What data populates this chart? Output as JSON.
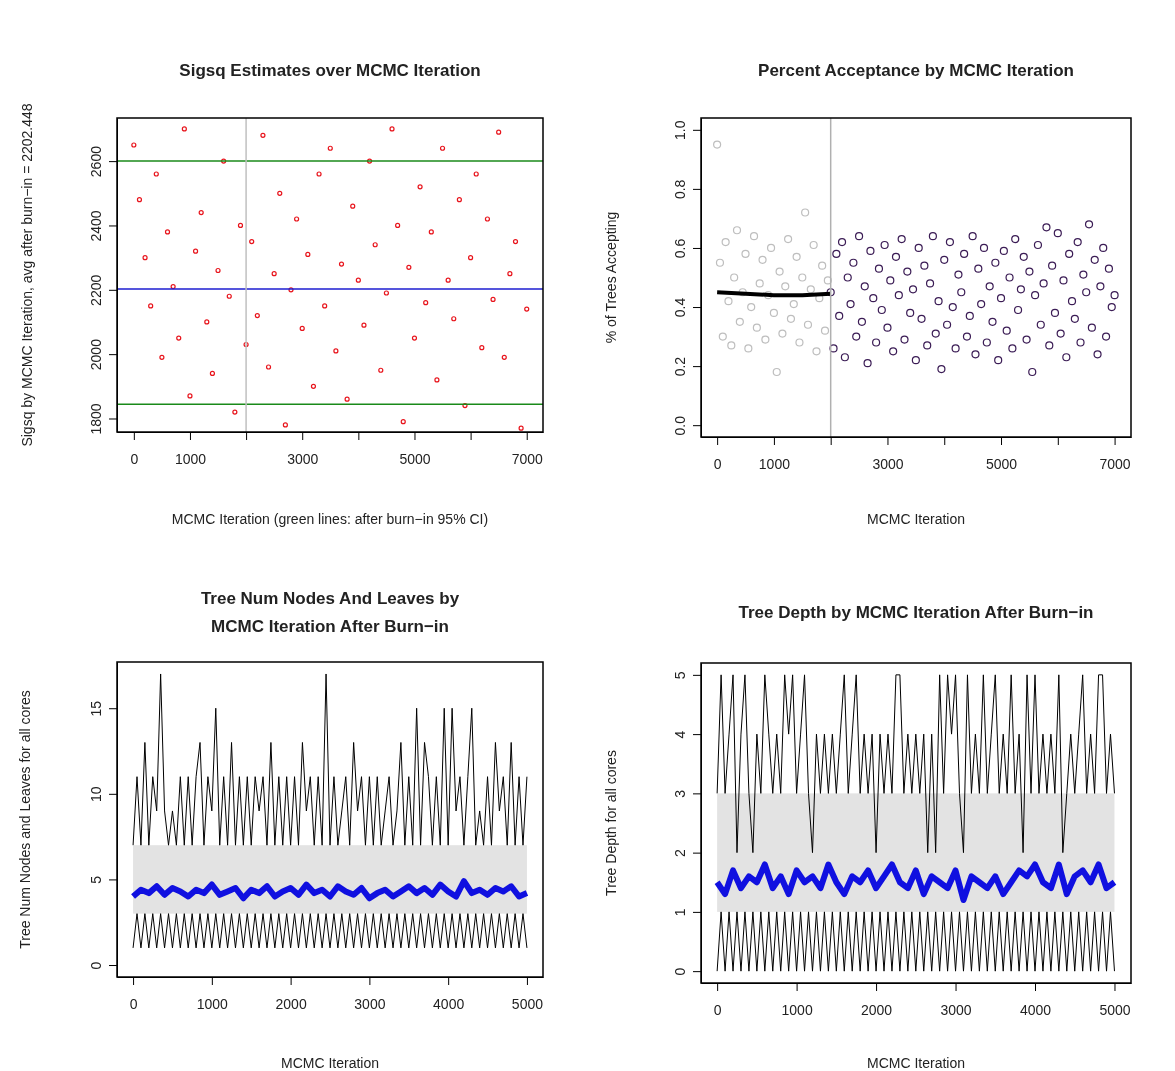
{
  "chart_data": [
    {
      "type": "scatter",
      "title": "Sigsq Estimates over MCMC Iteration",
      "xlabel": "MCMC Iteration (green lines: after burn−in 95% CI)",
      "ylabel": "Sigsq by MCMC Iteration, avg after burn−in = 2202.448",
      "marker": "circle",
      "xlim": [
        -300,
        7290
      ],
      "ylim": [
        1758,
        2734
      ],
      "xticks": [
        0,
        1000,
        {
          "value": 2000,
          "label": null
        },
        3000,
        {
          "value": 4000,
          "label": null
        },
        5000,
        {
          "value": 6000,
          "label": null
        },
        7000
      ],
      "yticks": [
        1800,
        2000,
        2200,
        2400,
        2600
      ],
      "x": [
        0,
        100,
        200,
        300,
        400,
        500,
        600,
        700,
        800,
        900,
        1000,
        1100,
        1200,
        1300,
        1400,
        1500,
        1600,
        1700,
        1800,
        1900,
        2000,
        2100,
        2200,
        2300,
        2400,
        2500,
        2600,
        2700,
        2800,
        2900,
        3000,
        3100,
        3200,
        3300,
        3400,
        3500,
        3600,
        3700,
        3800,
        3900,
        4000,
        4100,
        4200,
        4300,
        4400,
        4500,
        4600,
        4700,
        4800,
        4900,
        5000,
        5100,
        5200,
        5300,
        5400,
        5500,
        5600,
        5700,
        5800,
        5900,
        6000,
        6100,
        6200,
        6300,
        6400,
        6500,
        6600,
        6700,
        6800,
        6900,
        7000
      ],
      "series": [
        {
          "color": "#e8141c",
          "values": [
            2650,
            2480,
            2300,
            2150,
            2560,
            1990,
            2380,
            2210,
            2050,
            2700,
            1870,
            2320,
            2440,
            2100,
            1940,
            2260,
            2600,
            2180,
            1820,
            2400,
            2030,
            2350,
            2120,
            2680,
            1960,
            2250,
            2500,
            1780,
            2200,
            2420,
            2080,
            2310,
            1900,
            2560,
            2150,
            2640,
            2010,
            2280,
            1860,
            2460,
            2230,
            2090,
            2600,
            2340,
            1950,
            2190,
            2700,
            2400,
            1790,
            2270,
            2050,
            2520,
            2160,
            2380,
            1920,
            2640,
            2230,
            2110,
            2480,
            1840,
            2300,
            2560,
            2020,
            2420,
            2170,
            2690,
            1990,
            2250,
            2350,
            1770,
            2140
          ]
        }
      ],
      "ref_lines": [
        {
          "axis": "y",
          "value": 2600,
          "color": "#1a8a1a"
        },
        {
          "axis": "y",
          "value": 1844,
          "color": "#1a8a1a"
        },
        {
          "axis": "y",
          "value": 2202.448,
          "color": "#1c1cd0"
        },
        {
          "axis": "x",
          "value": 2000,
          "color": "#c0c0c0"
        }
      ]
    },
    {
      "type": "scatter",
      "title": "Percent Acceptance by MCMC Iteration",
      "xlabel": "MCMC Iteration",
      "ylabel": "% of Trees Accepting",
      "marker": "circle",
      "xlim": [
        -284,
        7289
      ],
      "ylim": [
        -0.04,
        1.04
      ],
      "xticks": [
        0,
        1000,
        {
          "value": 2000,
          "label": null
        },
        3000,
        {
          "value": 4000,
          "label": null
        },
        5000,
        {
          "value": 6000,
          "label": null
        },
        7000
      ],
      "yticks": [
        {
          "value": 0,
          "label": "0.0"
        },
        {
          "value": 0.2,
          "label": "0.2"
        },
        {
          "value": 0.4,
          "label": "0.4"
        },
        {
          "value": 0.6,
          "label": "0.6"
        },
        {
          "value": 0.8,
          "label": "0.8"
        },
        {
          "value": 1,
          "label": "1.0"
        }
      ],
      "series": [
        {
          "color": "#bebebe",
          "x": [
            0,
            50,
            100,
            150,
            200,
            250,
            300,
            350,
            400,
            450,
            500,
            550,
            600,
            650,
            700,
            750,
            800,
            850,
            900,
            950,
            1000,
            1050,
            1100,
            1150,
            1200,
            1250,
            1300,
            1350,
            1400,
            1450,
            1500,
            1550,
            1600,
            1650,
            1700,
            1750,
            1800,
            1850,
            1900,
            1950
          ],
          "values": [
            0.95,
            0.55,
            0.3,
            0.62,
            0.42,
            0.27,
            0.5,
            0.66,
            0.35,
            0.45,
            0.58,
            0.26,
            0.4,
            0.64,
            0.33,
            0.48,
            0.56,
            0.29,
            0.44,
            0.6,
            0.38,
            0.18,
            0.52,
            0.31,
            0.47,
            0.63,
            0.36,
            0.41,
            0.57,
            0.28,
            0.5,
            0.72,
            0.34,
            0.46,
            0.61,
            0.25,
            0.43,
            0.54,
            0.32,
            0.49
          ]
        },
        {
          "color": "#3b1c55",
          "x": [
            2000,
            2050,
            2100,
            2150,
            2200,
            2250,
            2300,
            2350,
            2400,
            2450,
            2500,
            2550,
            2600,
            2650,
            2700,
            2750,
            2800,
            2850,
            2900,
            2950,
            3000,
            3050,
            3100,
            3150,
            3200,
            3250,
            3300,
            3350,
            3400,
            3450,
            3500,
            3550,
            3600,
            3650,
            3700,
            3750,
            3800,
            3850,
            3900,
            3950,
            4000,
            4050,
            4100,
            4150,
            4200,
            4250,
            4300,
            4350,
            4400,
            4450,
            4500,
            4550,
            4600,
            4650,
            4700,
            4750,
            4800,
            4850,
            4900,
            4950,
            5000,
            5050,
            5100,
            5150,
            5200,
            5250,
            5300,
            5350,
            5400,
            5450,
            5500,
            5550,
            5600,
            5650,
            5700,
            5750,
            5800,
            5850,
            5900,
            5950,
            6000,
            6050,
            6100,
            6150,
            6200,
            6250,
            6300,
            6350,
            6400,
            6450,
            6500,
            6550,
            6600,
            6650,
            6700,
            6750,
            6800,
            6850,
            6900,
            6950,
            7000
          ],
          "values": [
            0.45,
            0.26,
            0.58,
            0.37,
            0.62,
            0.23,
            0.5,
            0.41,
            0.55,
            0.3,
            0.64,
            0.35,
            0.47,
            0.21,
            0.59,
            0.43,
            0.28,
            0.53,
            0.39,
            0.61,
            0.33,
            0.49,
            0.25,
            0.57,
            0.44,
            0.63,
            0.29,
            0.52,
            0.38,
            0.46,
            0.22,
            0.6,
            0.36,
            0.54,
            0.27,
            0.48,
            0.64,
            0.31,
            0.42,
            0.19,
            0.56,
            0.34,
            0.62,
            0.4,
            0.26,
            0.51,
            0.45,
            0.58,
            0.3,
            0.37,
            0.64,
            0.24,
            0.53,
            0.41,
            0.6,
            0.28,
            0.47,
            0.35,
            0.55,
            0.22,
            0.43,
            0.59,
            0.32,
            0.5,
            0.26,
            0.63,
            0.39,
            0.46,
            0.57,
            0.29,
            0.52,
            0.18,
            0.44,
            0.61,
            0.34,
            0.48,
            0.67,
            0.27,
            0.54,
            0.38,
            0.65,
            0.31,
            0.49,
            0.23,
            0.58,
            0.42,
            0.36,
            0.62,
            0.28,
            0.51,
            0.45,
            0.68,
            0.33,
            0.56,
            0.24,
            0.47,
            0.6,
            0.3,
            0.53,
            0.4,
            0.44
          ]
        },
        {
          "type": "line",
          "marker": "none",
          "color": "#000000",
          "x": [
            0,
            500,
            1000,
            1500,
            2000
          ],
          "values": [
            0.45,
            0.445,
            0.44,
            0.44,
            0.445
          ]
        }
      ],
      "ref_lines": [
        {
          "axis": "x",
          "value": 2000,
          "color": "#b0b0b0"
        }
      ]
    },
    {
      "type": "line",
      "title": "Tree Num Nodes And Leaves by\nMCMC Iteration After Burn−in",
      "xlabel": "MCMC Iteration",
      "ylabel": "Tree Num Nodes and Leaves for all cores",
      "xlim": [
        -204,
        5204
      ],
      "ylim": [
        -0.7,
        17.7
      ],
      "xticks": [
        0,
        1000,
        2000,
        3000,
        4000,
        5000
      ],
      "yticks": [
        0,
        5,
        10,
        15
      ],
      "x": [
        0,
        50,
        100,
        150,
        200,
        250,
        300,
        350,
        400,
        450,
        500,
        550,
        600,
        650,
        700,
        750,
        800,
        850,
        900,
        950,
        1000,
        1050,
        1100,
        1150,
        1200,
        1250,
        1300,
        1350,
        1400,
        1450,
        1500,
        1550,
        1600,
        1650,
        1700,
        1750,
        1800,
        1850,
        1900,
        1950,
        2000,
        2050,
        2100,
        2150,
        2200,
        2250,
        2300,
        2350,
        2400,
        2450,
        2500,
        2550,
        2600,
        2650,
        2700,
        2750,
        2800,
        2850,
        2900,
        2950,
        3000,
        3050,
        3100,
        3150,
        3200,
        3250,
        3300,
        3350,
        3400,
        3450,
        3500,
        3550,
        3600,
        3650,
        3700,
        3750,
        3800,
        3850,
        3900,
        3950,
        4000,
        4050,
        4100,
        4150,
        4200,
        4250,
        4300,
        4350,
        4400,
        4450,
        4500,
        4550,
        4600,
        4650,
        4700,
        4750,
        4800,
        4850,
        4900,
        4950,
        5000
      ],
      "bands": [
        {
          "axis": "y",
          "from": 3,
          "to": 7,
          "color": "#e3e3e3"
        }
      ],
      "series": [
        {
          "color": "#000000",
          "values": [
            7,
            11,
            7,
            13,
            7,
            11,
            9,
            17,
            9,
            7,
            9,
            7,
            11,
            7,
            11,
            7,
            11,
            13,
            7,
            11,
            9,
            15,
            7,
            11,
            7,
            13,
            7,
            11,
            7,
            11,
            7,
            11,
            9,
            11,
            7,
            13,
            7,
            11,
            7,
            11,
            7,
            11,
            7,
            13,
            9,
            11,
            7,
            11,
            7,
            17,
            7,
            11,
            7,
            9,
            11,
            7,
            13,
            9,
            11,
            7,
            11,
            7,
            11,
            7,
            9,
            11,
            7,
            9,
            13,
            7,
            11,
            7,
            15,
            7,
            13,
            11,
            7,
            11,
            7,
            15,
            7,
            15,
            9,
            11,
            7,
            11,
            15,
            7,
            9,
            7,
            11,
            7,
            13,
            9,
            11,
            7,
            13,
            7,
            11,
            7,
            11
          ]
        },
        {
          "color": "#000000",
          "values": [
            1,
            3,
            1,
            3,
            1,
            3,
            1,
            3,
            1,
            3,
            1,
            3,
            1,
            3,
            1,
            3,
            1,
            3,
            1,
            3,
            1,
            3,
            1,
            3,
            1,
            3,
            1,
            3,
            1,
            3,
            1,
            3,
            1,
            3,
            1,
            3,
            1,
            3,
            1,
            3,
            1,
            3,
            1,
            3,
            1,
            3,
            1,
            3,
            1,
            3,
            1,
            3,
            1,
            3,
            1,
            3,
            1,
            3,
            1,
            3,
            1,
            3,
            1,
            3,
            1,
            3,
            1,
            3,
            1,
            3,
            1,
            3,
            1,
            3,
            1,
            3,
            1,
            3,
            1,
            3,
            1,
            3,
            1,
            3,
            1,
            3,
            1,
            3,
            1,
            3,
            1,
            3,
            1,
            3,
            1,
            3,
            1,
            3,
            1,
            3,
            1
          ]
        },
        {
          "color": "#1010e0",
          "x": [
            0,
            100,
            200,
            300,
            400,
            500,
            600,
            700,
            800,
            900,
            1000,
            1100,
            1200,
            1300,
            1400,
            1500,
            1600,
            1700,
            1800,
            1900,
            2000,
            2100,
            2200,
            2300,
            2400,
            2500,
            2600,
            2700,
            2800,
            2900,
            3000,
            3100,
            3200,
            3300,
            3400,
            3500,
            3600,
            3700,
            3800,
            3900,
            4000,
            4100,
            4200,
            4300,
            4400,
            4500,
            4600,
            4700,
            4800,
            4900,
            5000
          ],
          "values": [
            4.0,
            4.4,
            4.2,
            4.6,
            4.1,
            4.5,
            4.3,
            4.0,
            4.4,
            4.2,
            4.7,
            4.1,
            4.3,
            4.5,
            3.9,
            4.4,
            4.2,
            4.6,
            4.0,
            4.3,
            4.5,
            4.1,
            4.7,
            4.2,
            4.4,
            4.0,
            4.6,
            4.3,
            4.1,
            4.5,
            3.9,
            4.2,
            4.4,
            4.0,
            4.3,
            4.6,
            4.2,
            4.5,
            4.1,
            4.7,
            4.3,
            4.0,
            4.9,
            4.2,
            4.4,
            4.1,
            4.5,
            4.3,
            4.6,
            4.0,
            4.2
          ]
        }
      ]
    },
    {
      "type": "line",
      "title": "Tree Depth by MCMC Iteration After Burn−in",
      "xlabel": "MCMC Iteration",
      "ylabel": "Tree Depth for all cores",
      "xlim": [
        -203,
        5208
      ],
      "ylim": [
        -0.2,
        5.2
      ],
      "xticks": [
        0,
        1000,
        2000,
        3000,
        4000,
        5000
      ],
      "yticks": [
        0,
        1,
        2,
        3,
        4,
        5
      ],
      "x": [
        0,
        50,
        100,
        150,
        200,
        250,
        300,
        350,
        400,
        450,
        500,
        550,
        600,
        650,
        700,
        750,
        800,
        850,
        900,
        950,
        1000,
        1050,
        1100,
        1150,
        1200,
        1250,
        1300,
        1350,
        1400,
        1450,
        1500,
        1550,
        1600,
        1650,
        1700,
        1750,
        1800,
        1850,
        1900,
        1950,
        2000,
        2050,
        2100,
        2150,
        2200,
        2250,
        2300,
        2350,
        2400,
        2450,
        2500,
        2550,
        2600,
        2650,
        2700,
        2750,
        2800,
        2850,
        2900,
        2950,
        3000,
        3050,
        3100,
        3150,
        3200,
        3250,
        3300,
        3350,
        3400,
        3450,
        3500,
        3550,
        3600,
        3650,
        3700,
        3750,
        3800,
        3850,
        3900,
        3950,
        4000,
        4050,
        4100,
        4150,
        4200,
        4250,
        4300,
        4350,
        4400,
        4450,
        4500,
        4550,
        4600,
        4650,
        4700,
        4750,
        4800,
        4850,
        4900,
        4950,
        5000
      ],
      "bands": [
        {
          "axis": "y",
          "from": 1,
          "to": 3,
          "color": "#e3e3e3"
        }
      ],
      "series": [
        {
          "color": "#000000",
          "values": [
            3,
            5,
            3,
            4,
            5,
            2,
            4,
            5,
            3,
            2,
            4,
            3,
            5,
            4,
            3,
            4,
            3,
            5,
            4,
            5,
            3,
            4,
            5,
            3,
            2,
            4,
            3,
            4,
            3,
            4,
            3,
            4,
            5,
            3,
            4,
            5,
            3,
            4,
            3,
            4,
            2,
            4,
            3,
            4,
            3,
            5,
            5,
            3,
            4,
            3,
            4,
            3,
            4,
            2,
            4,
            2,
            5,
            3,
            5,
            4,
            5,
            3,
            2,
            5,
            3,
            4,
            3,
            5,
            3,
            4,
            5,
            3,
            4,
            3,
            5,
            3,
            4,
            2,
            5,
            3,
            5,
            3,
            4,
            3,
            4,
            3,
            5,
            2,
            3,
            4,
            3,
            4,
            5,
            3,
            4,
            3,
            5,
            5,
            3,
            4,
            3
          ]
        },
        {
          "color": "#000000",
          "values": [
            0,
            1,
            0,
            1,
            0,
            1,
            0,
            1,
            0,
            1,
            0,
            1,
            0,
            1,
            0,
            1,
            0,
            1,
            0,
            1,
            0,
            1,
            0,
            1,
            0,
            1,
            0,
            1,
            0,
            1,
            0,
            1,
            0,
            1,
            0,
            1,
            0,
            1,
            0,
            1,
            0,
            1,
            0,
            1,
            0,
            1,
            0,
            1,
            0,
            1,
            0,
            1,
            0,
            1,
            0,
            1,
            0,
            1,
            0,
            1,
            0,
            1,
            0,
            1,
            0,
            1,
            0,
            1,
            0,
            1,
            0,
            1,
            0,
            1,
            0,
            1,
            0,
            1,
            0,
            1,
            0,
            1,
            0,
            1,
            0,
            1,
            0,
            1,
            0,
            1,
            0,
            1,
            0,
            1,
            0,
            1,
            0,
            1,
            0,
            1,
            0
          ]
        },
        {
          "color": "#1010e0",
          "x": [
            0,
            100,
            200,
            300,
            400,
            500,
            600,
            700,
            800,
            900,
            1000,
            1100,
            1200,
            1300,
            1400,
            1500,
            1600,
            1700,
            1800,
            1900,
            2000,
            2100,
            2200,
            2300,
            2400,
            2500,
            2600,
            2700,
            2800,
            2900,
            3000,
            3100,
            3200,
            3300,
            3400,
            3500,
            3600,
            3700,
            3800,
            3900,
            4000,
            4100,
            4200,
            4300,
            4400,
            4500,
            4600,
            4700,
            4800,
            4900,
            5000
          ],
          "values": [
            1.5,
            1.3,
            1.7,
            1.4,
            1.6,
            1.5,
            1.8,
            1.4,
            1.6,
            1.3,
            1.7,
            1.5,
            1.6,
            1.4,
            1.8,
            1.5,
            1.3,
            1.6,
            1.5,
            1.7,
            1.4,
            1.6,
            1.8,
            1.5,
            1.4,
            1.7,
            1.3,
            1.6,
            1.5,
            1.4,
            1.7,
            1.2,
            1.6,
            1.5,
            1.4,
            1.6,
            1.3,
            1.5,
            1.7,
            1.6,
            1.8,
            1.5,
            1.4,
            1.8,
            1.3,
            1.6,
            1.7,
            1.5,
            1.8,
            1.4,
            1.5
          ]
        }
      ]
    }
  ]
}
